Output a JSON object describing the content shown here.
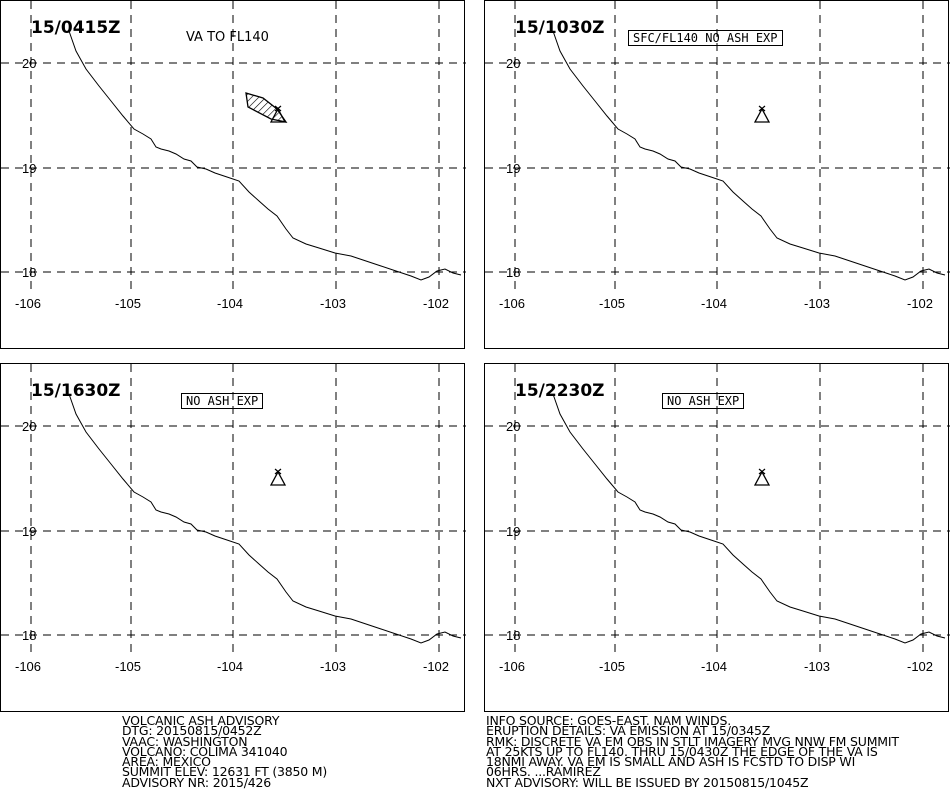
{
  "panels": [
    {
      "time": "15/0415Z",
      "note": "VA TO FL140",
      "note_style": "plain",
      "ash_polygon": true
    },
    {
      "time": "15/1030Z",
      "note": "SFC/FL140  NO  ASH  EXP",
      "note_style": "boxed",
      "ash_polygon": false
    },
    {
      "time": "15/1630Z",
      "note": "NO  ASH  EXP",
      "note_style": "boxed",
      "ash_polygon": false
    },
    {
      "time": "15/2230Z",
      "note": "NO  ASH  EXP",
      "note_style": "boxed",
      "ash_polygon": false
    }
  ],
  "map": {
    "lat_labels": [
      "20",
      "19",
      "18"
    ],
    "lon_labels": [
      "-106",
      "-105",
      "-104",
      "-103",
      "-102"
    ],
    "volcano_symbol": "volcano-triangle-icon",
    "coastline_color": "#000000",
    "grid_style": "dashed"
  },
  "advisory_left": [
    "VOLCANIC ASH ADVISORY",
    "DTG: 20150815/0452Z",
    "VAAC: WASHINGTON",
    "VOLCANO: COLIMA 341040",
    "AREA: MEXICO",
    "SUMMIT ELEV: 12631 FT (3850 M)",
    "ADVISORY NR: 2015/426"
  ],
  "advisory_right": [
    "INFO SOURCE: GOES-EAST. NAM WINDS.",
    "ERUPTION DETAILS: VA EMISSION AT 15/0345Z",
    "RMK: DISCRETE VA EM OBS IN STLT IMAGERY MVG NNW FM SUMMIT",
    "AT 25KTS UP TO FL140. THRU 15/0430Z THE EDGE OF THE VA IS",
    "18NMI AWAY. VA EM IS SMALL AND ASH IS FCSTD TO DISP WI",
    "06HRS. ...RAMIREZ",
    "NXT ADVISORY: WILL BE ISSUED BY 20150815/1045Z"
  ]
}
